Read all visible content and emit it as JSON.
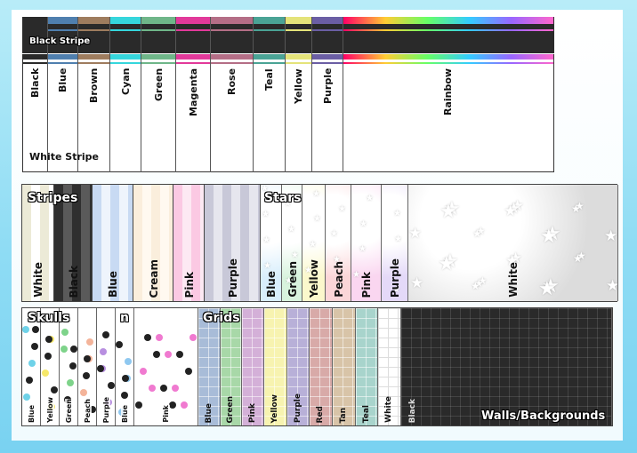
{
  "top": {
    "black_label": "Black Stripe",
    "white_label": "White Stripe",
    "columns": [
      {
        "name": "Black",
        "color": "#2a2a2a"
      },
      {
        "name": "Blue",
        "color": "#4f7fae"
      },
      {
        "name": "Brown",
        "color": "#9e7c5e"
      },
      {
        "name": "Cyan",
        "color": "#35d6dc"
      },
      {
        "name": "Green",
        "color": "#6fb689"
      },
      {
        "name": "Magenta",
        "color": "#e2399a"
      },
      {
        "name": "Rose",
        "color": "#b46e86"
      },
      {
        "name": "Teal",
        "color": "#4aa395"
      },
      {
        "name": "Yellow",
        "color": "#e4e37a"
      },
      {
        "name": "Purple",
        "color": "#6b5ea4"
      },
      {
        "name": "Rainbow",
        "color": "rainbow"
      }
    ]
  },
  "stripes": {
    "title": "Stripes",
    "items": [
      {
        "name": "White",
        "c1": "#ecead7",
        "c2": "#ffffff"
      },
      {
        "name": "Black",
        "c1": "#2f2f2f",
        "c2": "#5a5a5a"
      },
      {
        "name": "Blue",
        "c1": "#c8daf3",
        "c2": "#eef4fc"
      },
      {
        "name": "Cream",
        "c1": "#faeedc",
        "c2": "#fff9f0"
      },
      {
        "name": "Pink",
        "c1": "#fbc9e3",
        "c2": "#fde9f3"
      },
      {
        "name": "Purple",
        "c1": "#c8c8d8",
        "c2": "#e6e6ee"
      }
    ]
  },
  "stars": {
    "title": "Stars",
    "items": [
      {
        "name": "Blue",
        "color": "#d8eefc"
      },
      {
        "name": "Green",
        "color": "#d8f3dd"
      },
      {
        "name": "Yellow",
        "color": "#fbf8cc"
      },
      {
        "name": "Peach",
        "color": "#fbd6d8"
      },
      {
        "name": "Pink",
        "color": "#fad6f0"
      },
      {
        "name": "Purple",
        "color": "#e4d9f8"
      },
      {
        "name": "White",
        "color": "#dcdcdc"
      }
    ]
  },
  "skulls": {
    "title": "Skulls",
    "title_extra": "n",
    "items": [
      "Blue",
      "Yellow",
      "Green",
      "Peach",
      "Purple",
      "Blue",
      "Pink"
    ]
  },
  "grids": {
    "title": "Grids",
    "items": [
      {
        "name": "Blue",
        "color": "#a8bcd8"
      },
      {
        "name": "Green",
        "color": "#a8d8a8"
      },
      {
        "name": "Pink",
        "color": "#d4b0d8"
      },
      {
        "name": "Yellow",
        "color": "#f7f3b0"
      },
      {
        "name": "Purple",
        "color": "#b8b0d8"
      },
      {
        "name": "Red",
        "color": "#d8aaa8"
      },
      {
        "name": "Tan",
        "color": "#d8c4a8"
      },
      {
        "name": "Teal",
        "color": "#a8d4cc"
      },
      {
        "name": "White",
        "color": "#ffffff"
      },
      {
        "name": "Black",
        "color": "#2a2a2a"
      }
    ]
  },
  "walls_label": "Walls/Backgrounds"
}
